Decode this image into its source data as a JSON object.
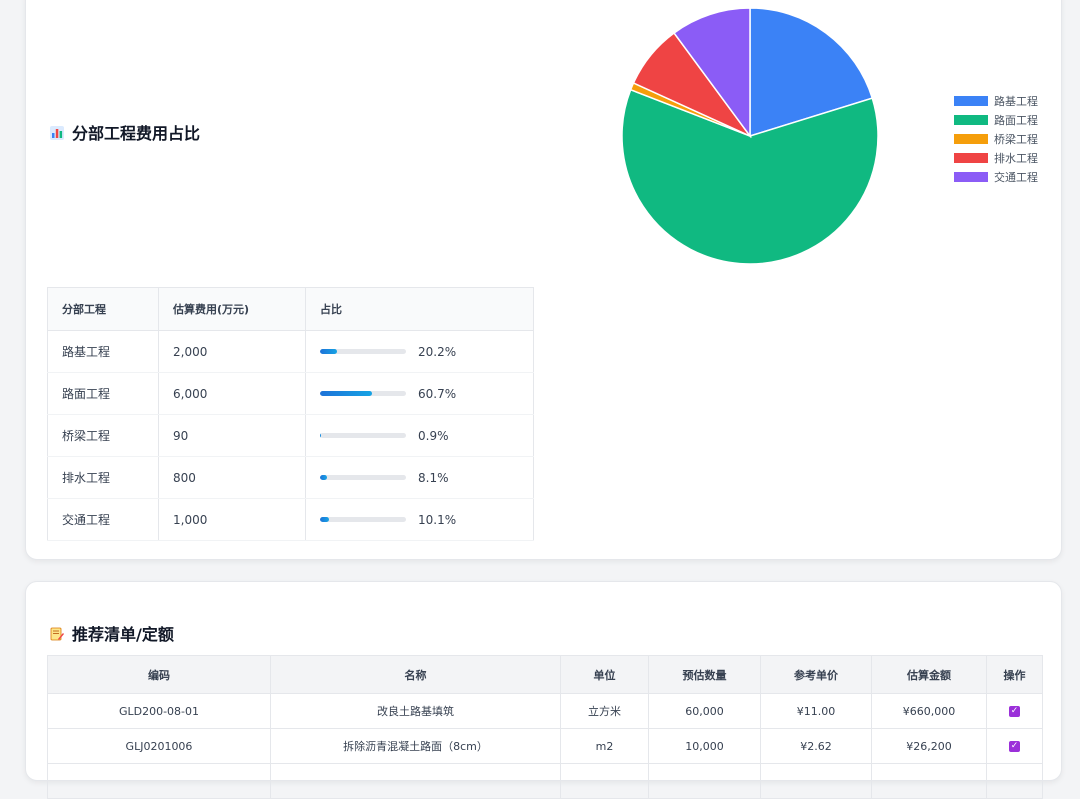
{
  "section1": {
    "title": "分部工程费用占比",
    "table": {
      "headers": [
        "分部工程",
        "估算费用(万元)",
        "占比"
      ],
      "rows": [
        {
          "name": "路基工程",
          "cost": "2,000",
          "pct_label": "20.2%",
          "pct": 20.2
        },
        {
          "name": "路面工程",
          "cost": "6,000",
          "pct_label": "60.7%",
          "pct": 60.7
        },
        {
          "name": "桥梁工程",
          "cost": "90",
          "pct_label": "0.9%",
          "pct": 0.9
        },
        {
          "name": "排水工程",
          "cost": "800",
          "pct_label": "8.1%",
          "pct": 8.1
        },
        {
          "name": "交通工程",
          "cost": "1,000",
          "pct_label": "10.1%",
          "pct": 10.1
        }
      ]
    }
  },
  "chart_data": {
    "type": "pie",
    "title": "",
    "labels": [
      "路基工程",
      "路面工程",
      "桥梁工程",
      "排水工程",
      "交通工程"
    ],
    "values": [
      2000,
      6000,
      90,
      800,
      1000
    ],
    "colors": [
      "#3b82f6",
      "#10b981",
      "#f59e0b",
      "#ef4444",
      "#8b5cf6"
    ],
    "legend_position": "right"
  },
  "section2": {
    "title": "推荐清单/定额",
    "table": {
      "headers": [
        "编码",
        "名称",
        "单位",
        "预估数量",
        "参考单价",
        "估算金额",
        "操作"
      ],
      "rows": [
        {
          "code": "GLD200-08-01",
          "name": "改良土路基填筑",
          "unit": "立方米",
          "qty": "60,000",
          "price": "¥11.00",
          "amount": "¥660,000",
          "checked": true
        },
        {
          "code": "GLJ0201006",
          "name": "拆除沥青混凝土路面（8cm）",
          "unit": "m2",
          "qty": "10,000",
          "price": "¥2.62",
          "amount": "¥26,200",
          "checked": true
        },
        {
          "code": "",
          "name": "",
          "unit": "",
          "qty": "",
          "price": "",
          "amount": "",
          "checked": false
        }
      ]
    }
  }
}
